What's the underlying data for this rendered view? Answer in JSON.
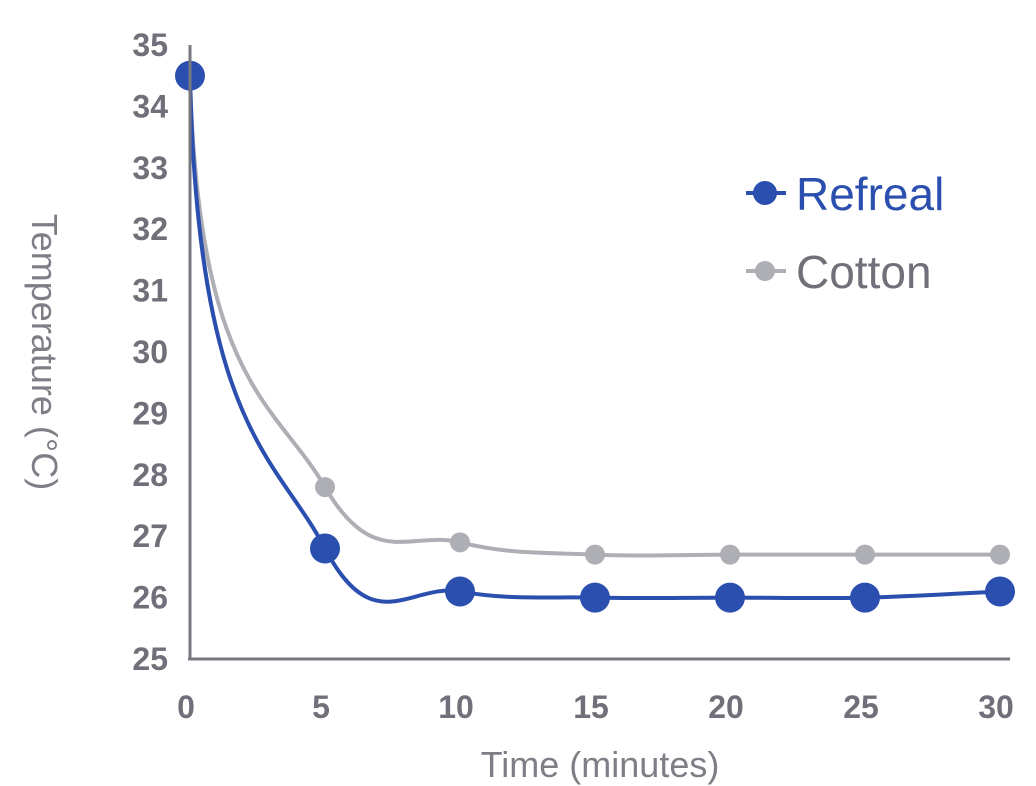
{
  "chart_data": {
    "type": "line",
    "title": "",
    "xlabel": "Time (minutes)",
    "ylabel": "Temperature (°C)",
    "x": [
      0,
      5,
      10,
      15,
      20,
      25,
      30
    ],
    "xticks": [
      "0",
      "5",
      "10",
      "15",
      "20",
      "25",
      "30"
    ],
    "yticks": [
      "25",
      "26",
      "27",
      "28",
      "29",
      "30",
      "31",
      "32",
      "33",
      "34",
      "35"
    ],
    "xlim": [
      0,
      30
    ],
    "ylim": [
      25,
      35
    ],
    "grid": false,
    "legend_position": "top-right",
    "series": [
      {
        "name": "Refreal",
        "color": "#2b4fae",
        "values": [
          34.5,
          26.8,
          26.1,
          26.0,
          26.0,
          26.0,
          26.1
        ]
      },
      {
        "name": "Cotton",
        "color": "#aeafb5",
        "values": [
          34.5,
          27.8,
          26.9,
          26.7,
          26.7,
          26.7,
          26.7
        ]
      }
    ]
  }
}
